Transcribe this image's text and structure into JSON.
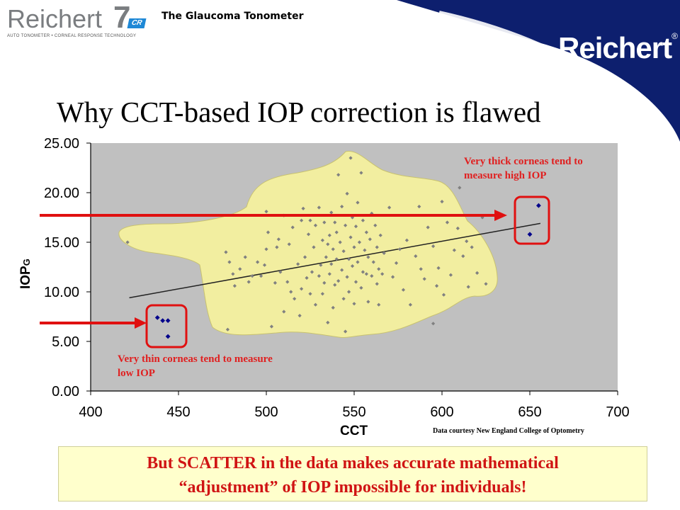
{
  "header": {
    "brand_word": "Reichert",
    "brand_number": "7",
    "brand_badge": "CR",
    "brand_tagline": "AUTO TONOMETER • CORNEAL RESPONSE TECHNOLOGY",
    "product_tag": "The Glaucoma Tonometer",
    "corner_logo": "Reichert",
    "corner_logo_mark": "®",
    "corner_color": "#0d1f6e"
  },
  "slide": {
    "title": "Why CCT-based IOP correction is flawed",
    "bottom_line1": "But SCATTER in the data makes accurate mathematical",
    "bottom_line2": "“adjustment” of IOP impossible for individuals!",
    "credit": "Data courtesy New England College of Optometry"
  },
  "annotations": {
    "thick": "Very thick corneas tend to measure high IOP",
    "thin": "Very thin corneas tend to measure low IOP"
  },
  "colors": {
    "plot_background": "#c0c0c0",
    "scatter_region": "#f2eea0",
    "points": "#808080",
    "highlight_points": "#00008b",
    "annotation": "#e02020",
    "arrow": "#e01010"
  },
  "chart_data": {
    "type": "scatter",
    "xlabel": "CCT",
    "ylabel": "IOP",
    "ylabel_subscript": "G",
    "xlim": [
      400,
      700
    ],
    "ylim": [
      0,
      25
    ],
    "x_ticks": [
      "400",
      "450",
      "500",
      "550",
      "600",
      "650",
      "700"
    ],
    "y_ticks": [
      "0.00",
      "5.00",
      "10.00",
      "15.00",
      "20.00",
      "25.00"
    ],
    "grid": false,
    "trendline": {
      "x": [
        422,
        656
      ],
      "y": [
        9.4,
        16.9
      ]
    },
    "series": [
      {
        "highlight": false,
        "points": [
          [
            421,
            15.0
          ],
          [
            477,
            14.0
          ],
          [
            478,
            6.2
          ],
          [
            479,
            13.0
          ],
          [
            481,
            11.8
          ],
          [
            482,
            10.6
          ],
          [
            485,
            12.3
          ],
          [
            488,
            13.5
          ],
          [
            490,
            11.0
          ],
          [
            492,
            11.6
          ],
          [
            495,
            13.0
          ],
          [
            497,
            11.6
          ],
          [
            499,
            12.7
          ],
          [
            500,
            14.3
          ],
          [
            500,
            18.1
          ],
          [
            501,
            16.0
          ],
          [
            503,
            6.5
          ],
          [
            505,
            10.9
          ],
          [
            506,
            14.5
          ],
          [
            507,
            15.3
          ],
          [
            508,
            12.0
          ],
          [
            510,
            8.0
          ],
          [
            510,
            17.7
          ],
          [
            512,
            11.0
          ],
          [
            513,
            14.8
          ],
          [
            514,
            10.0
          ],
          [
            515,
            16.5
          ],
          [
            516,
            9.3
          ],
          [
            518,
            12.8
          ],
          [
            519,
            7.6
          ],
          [
            520,
            10.3
          ],
          [
            520,
            17.2
          ],
          [
            521,
            18.4
          ],
          [
            522,
            13.5
          ],
          [
            523,
            11.4
          ],
          [
            524,
            15.8
          ],
          [
            525,
            9.8
          ],
          [
            525,
            17.2
          ],
          [
            526,
            12.0
          ],
          [
            527,
            14.5
          ],
          [
            528,
            8.7
          ],
          [
            528,
            16.7
          ],
          [
            530,
            11.6
          ],
          [
            530,
            18.5
          ],
          [
            531,
            12.7
          ],
          [
            532,
            9.8
          ],
          [
            532,
            15.2
          ],
          [
            533,
            17.0
          ],
          [
            533,
            10.9
          ],
          [
            534,
            13.5
          ],
          [
            535,
            6.9
          ],
          [
            535,
            14.8
          ],
          [
            536,
            11.8
          ],
          [
            536,
            15.7
          ],
          [
            537,
            18.0
          ],
          [
            537,
            12.8
          ],
          [
            538,
            8.4
          ],
          [
            538,
            14.3
          ],
          [
            539,
            17.0
          ],
          [
            539,
            10.7
          ],
          [
            540,
            13.3
          ],
          [
            540,
            16.0
          ],
          [
            541,
            21.8
          ],
          [
            541,
            11.1
          ],
          [
            542,
            15.0
          ],
          [
            543,
            12.2
          ],
          [
            543,
            18.6
          ],
          [
            544,
            9.3
          ],
          [
            544,
            14.1
          ],
          [
            545,
            6.0
          ],
          [
            545,
            16.7
          ],
          [
            546,
            11.5
          ],
          [
            546,
            19.9
          ],
          [
            547,
            13.3
          ],
          [
            547,
            10.0
          ],
          [
            548,
            15.5
          ],
          [
            548,
            23.5
          ],
          [
            549,
            12.6
          ],
          [
            549,
            17.5
          ],
          [
            550,
            8.8
          ],
          [
            550,
            14.5
          ],
          [
            551,
            11.0
          ],
          [
            551,
            16.6
          ],
          [
            552,
            13.0
          ],
          [
            552,
            19.0
          ],
          [
            553,
            15.0
          ],
          [
            554,
            10.4
          ],
          [
            554,
            22.0
          ],
          [
            555,
            12.0
          ],
          [
            555,
            17.2
          ],
          [
            556,
            14.2
          ],
          [
            557,
            11.8
          ],
          [
            557,
            16.0
          ],
          [
            558,
            13.5
          ],
          [
            558,
            9.0
          ],
          [
            559,
            15.3
          ],
          [
            560,
            11.6
          ],
          [
            560,
            17.9
          ],
          [
            561,
            13.0
          ],
          [
            562,
            16.7
          ],
          [
            563,
            10.8
          ],
          [
            563,
            14.5
          ],
          [
            564,
            8.7
          ],
          [
            564,
            12.3
          ],
          [
            565,
            15.7
          ],
          [
            566,
            11.8
          ],
          [
            567,
            13.9
          ],
          [
            570,
            18.5
          ],
          [
            572,
            11.5
          ],
          [
            574,
            12.9
          ],
          [
            576,
            14.3
          ],
          [
            578,
            10.2
          ],
          [
            580,
            15.2
          ],
          [
            582,
            8.7
          ],
          [
            585,
            13.6
          ],
          [
            587,
            18.6
          ],
          [
            588,
            12.3
          ],
          [
            590,
            11.3
          ],
          [
            592,
            16.5
          ],
          [
            595,
            14.6
          ],
          [
            595,
            6.8
          ],
          [
            597,
            10.6
          ],
          [
            598,
            12.4
          ],
          [
            600,
            19.1
          ],
          [
            601,
            9.7
          ],
          [
            603,
            17.0
          ],
          [
            605,
            11.7
          ],
          [
            607,
            14.2
          ],
          [
            609,
            16.4
          ],
          [
            610,
            20.5
          ],
          [
            612,
            13.6
          ],
          [
            614,
            15.1
          ],
          [
            615,
            10.5
          ],
          [
            617,
            14.5
          ],
          [
            620,
            11.9
          ],
          [
            623,
            17.5
          ],
          [
            625,
            10.8
          ]
        ]
      },
      {
        "highlight": true,
        "points": [
          [
            438,
            7.4
          ],
          [
            441,
            7.1
          ],
          [
            444,
            5.5
          ],
          [
            444,
            7.1
          ],
          [
            650,
            15.8
          ],
          [
            655,
            18.7
          ]
        ]
      }
    ]
  }
}
